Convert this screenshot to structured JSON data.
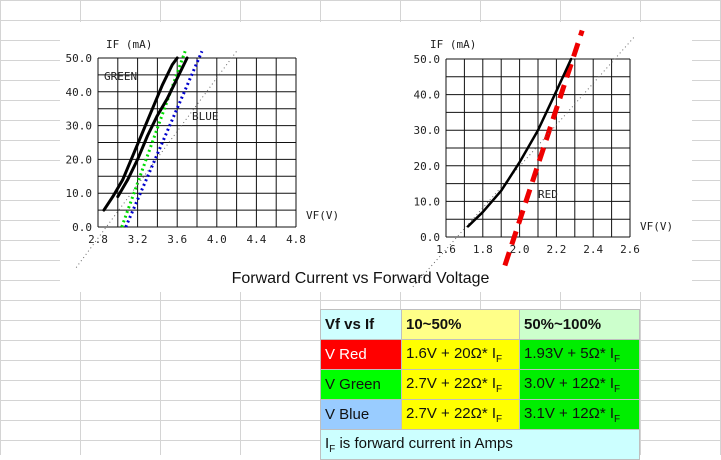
{
  "caption": "Forward Current vs Forward Voltage",
  "chart_data": [
    {
      "type": "line",
      "ylabel": "IF (mA)",
      "xlabel": "VF(V)",
      "x_ticks": [
        "2.8",
        "3.2",
        "3.6",
        "4.0",
        "4.4",
        "4.8"
      ],
      "y_ticks": [
        "0.0",
        "10.0",
        "20.0",
        "30.0",
        "40.0",
        "50.0"
      ],
      "xlim": [
        2.8,
        4.8
      ],
      "ylim": [
        0,
        50
      ],
      "annotations": [
        "GREEN",
        "BLUE"
      ],
      "series": [
        {
          "name": "GREEN",
          "x": [
            2.86,
            2.95,
            3.05,
            3.15,
            3.25,
            3.35,
            3.45,
            3.55,
            3.6
          ],
          "y": [
            5,
            9,
            14,
            21,
            28,
            35,
            42,
            48,
            50
          ],
          "color": "#000000"
        },
        {
          "name": "BLUE",
          "x": [
            3.0,
            3.1,
            3.2,
            3.3,
            3.4,
            3.5,
            3.6,
            3.7
          ],
          "y": [
            9,
            14,
            20,
            27,
            33,
            38,
            44,
            50
          ],
          "color": "#000000"
        }
      ],
      "fit_lines": [
        {
          "color": "#00dd00",
          "style": "dotted",
          "x": [
            3.04,
            3.68
          ],
          "y": [
            0,
            52
          ]
        },
        {
          "color": "#0000cc",
          "style": "dotted",
          "x": [
            3.08,
            3.85
          ],
          "y": [
            0,
            52
          ]
        },
        {
          "color": "#666666",
          "style": "dotted",
          "x": [
            2.58,
            4.2
          ],
          "y": [
            -12,
            52
          ]
        }
      ]
    },
    {
      "type": "line",
      "ylabel": "IF (mA)",
      "xlabel": "VF(V)",
      "x_ticks": [
        "1.6",
        "1.8",
        "2.0",
        "2.2",
        "2.4",
        "2.6"
      ],
      "y_ticks": [
        "0.0",
        "10.0",
        "20.0",
        "30.0",
        "40.0",
        "50.0"
      ],
      "xlim": [
        1.6,
        2.6
      ],
      "ylim": [
        0,
        50
      ],
      "annotations": [
        "RED"
      ],
      "series": [
        {
          "name": "RED",
          "x": [
            1.72,
            1.8,
            1.9,
            2.0,
            2.1,
            2.2,
            2.28
          ],
          "y": [
            3,
            7,
            13,
            21,
            30,
            41,
            50
          ],
          "color": "#000000"
        }
      ],
      "fit_lines": [
        {
          "color": "#ee0000",
          "style": "dashed",
          "x": [
            1.92,
            2.34
          ],
          "y": [
            -8,
            58
          ]
        },
        {
          "color": "#666666",
          "style": "dotted",
          "x": [
            1.42,
            2.62
          ],
          "y": [
            -14,
            56
          ]
        }
      ]
    }
  ],
  "table": {
    "header": {
      "col1": "Vf vs If",
      "col2": "10~50%",
      "col3": "50%~100%"
    },
    "rows": [
      {
        "label": "V Red",
        "low_main": "1.6V + 20Ω* I",
        "low_sub": "F",
        "high_main": "1.93V + 5Ω* I",
        "high_sub": "F"
      },
      {
        "label": "V Green",
        "low_main": "2.7V + 22Ω* I",
        "low_sub": "F",
        "high_main": "3.0V + 12Ω* I",
        "high_sub": "F"
      },
      {
        "label": "V Blue",
        "low_main": "2.7V + 22Ω* I",
        "low_sub": "F",
        "high_main": "3.1V + 12Ω* I",
        "high_sub": "F"
      }
    ],
    "note_prefix": "I",
    "note_sub": "F",
    "note_rest": " is forward current in Amps"
  },
  "colors": {
    "red": "#ff0000",
    "green": "#00ff00",
    "blue": "#99ccff",
    "yellow": "#ffff00",
    "header_cyan": "#cfffff"
  }
}
